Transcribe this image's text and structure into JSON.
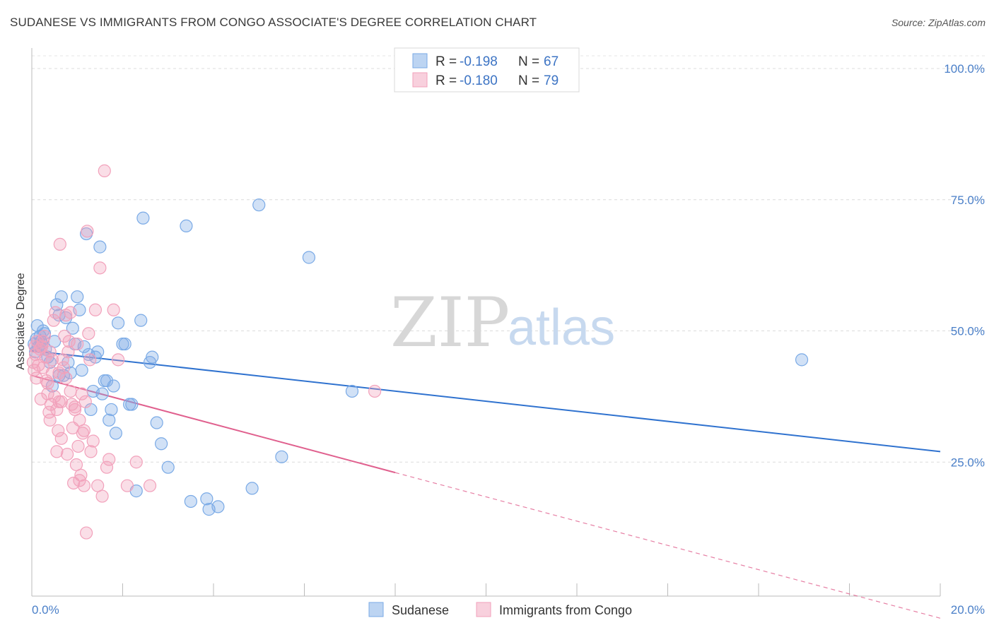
{
  "title": "SUDANESE VS IMMIGRANTS FROM CONGO ASSOCIATE'S DEGREE CORRELATION CHART",
  "source": "Source: ZipAtlas.com",
  "watermark": {
    "zip": "ZIP",
    "atlas": "atlas"
  },
  "chart_data": {
    "type": "scatter",
    "title": "SUDANESE VS IMMIGRANTS FROM CONGO ASSOCIATE'S DEGREE CORRELATION CHART",
    "xlabel": "",
    "ylabel": "Associate's Degree",
    "xlim": [
      0,
      20
    ],
    "ylim": [
      0,
      100
    ],
    "x_ticks": [
      "0.0%",
      "20.0%"
    ],
    "y_ticks": [
      {
        "value": 100,
        "label": "100.0%"
      },
      {
        "value": 75,
        "label": "75.0%"
      },
      {
        "value": 50,
        "label": "50.0%"
      },
      {
        "value": 25,
        "label": "25.0%"
      }
    ],
    "grid": true,
    "legend_position": "top-center",
    "series": [
      {
        "name": "Sudanese",
        "color": "#7aaae6",
        "line_color": "#2f72cf",
        "R": "-0.198",
        "N": "67",
        "trend": {
          "x0": 0,
          "y0": 46.2,
          "x1": 20,
          "y1": 27.0,
          "dashed_to": 20
        },
        "points": [
          [
            0.05,
            47.5
          ],
          [
            0.08,
            46.0
          ],
          [
            0.1,
            48.5
          ],
          [
            0.12,
            51.0
          ],
          [
            0.15,
            47.0
          ],
          [
            0.18,
            49.0
          ],
          [
            0.2,
            48.0
          ],
          [
            0.22,
            47.5
          ],
          [
            0.25,
            50.0
          ],
          [
            0.28,
            49.5
          ],
          [
            0.3,
            46.5
          ],
          [
            0.35,
            45.0
          ],
          [
            0.4,
            44.0
          ],
          [
            0.45,
            39.5
          ],
          [
            0.5,
            48.0
          ],
          [
            0.55,
            55.0
          ],
          [
            0.6,
            53.0
          ],
          [
            0.65,
            56.5
          ],
          [
            0.7,
            41.5
          ],
          [
            0.75,
            52.5
          ],
          [
            0.8,
            44.0
          ],
          [
            0.85,
            42.0
          ],
          [
            0.9,
            50.5
          ],
          [
            0.95,
            47.5
          ],
          [
            1.0,
            56.5
          ],
          [
            1.05,
            54.0
          ],
          [
            1.1,
            42.5
          ],
          [
            1.15,
            47.0
          ],
          [
            1.2,
            68.5
          ],
          [
            1.25,
            45.5
          ],
          [
            1.3,
            35.0
          ],
          [
            1.35,
            38.5
          ],
          [
            1.4,
            45.0
          ],
          [
            1.45,
            46.0
          ],
          [
            1.5,
            66.0
          ],
          [
            1.55,
            38.0
          ],
          [
            1.6,
            40.5
          ],
          [
            1.65,
            40.5
          ],
          [
            1.7,
            33.0
          ],
          [
            1.75,
            35.0
          ],
          [
            1.8,
            39.5
          ],
          [
            1.85,
            30.5
          ],
          [
            1.9,
            51.5
          ],
          [
            2.0,
            47.5
          ],
          [
            2.05,
            47.5
          ],
          [
            2.15,
            36.0
          ],
          [
            2.2,
            36.0
          ],
          [
            2.3,
            19.5
          ],
          [
            2.4,
            52.0
          ],
          [
            2.45,
            71.5
          ],
          [
            2.6,
            44.0
          ],
          [
            2.65,
            45.0
          ],
          [
            2.75,
            32.5
          ],
          [
            2.85,
            28.5
          ],
          [
            3.0,
            24.0
          ],
          [
            3.4,
            70.0
          ],
          [
            3.5,
            17.5
          ],
          [
            3.85,
            18.0
          ],
          [
            3.9,
            16.0
          ],
          [
            4.1,
            16.5
          ],
          [
            4.85,
            20.0
          ],
          [
            5.0,
            74.0
          ],
          [
            5.5,
            26.0
          ],
          [
            6.1,
            64.0
          ],
          [
            7.05,
            38.5
          ],
          [
            16.95,
            44.5
          ],
          [
            0.6,
            41.5
          ]
        ]
      },
      {
        "name": "Immigrants from Congo",
        "color": "#f2a1bb",
        "line_color": "#e0608e",
        "R": "-0.180",
        "N": "79",
        "trend": {
          "x0": 0,
          "y0": 41.5,
          "x1": 8.0,
          "y1": 23.0,
          "dashed_to": 20
        },
        "points": [
          [
            0.03,
            44.0
          ],
          [
            0.05,
            42.5
          ],
          [
            0.07,
            47.0
          ],
          [
            0.08,
            45.5
          ],
          [
            0.1,
            41.0
          ],
          [
            0.12,
            48.0
          ],
          [
            0.15,
            43.5
          ],
          [
            0.18,
            46.5
          ],
          [
            0.2,
            37.0
          ],
          [
            0.22,
            47.0
          ],
          [
            0.25,
            43.0
          ],
          [
            0.28,
            49.0
          ],
          [
            0.3,
            45.0
          ],
          [
            0.32,
            40.5
          ],
          [
            0.35,
            38.0
          ],
          [
            0.38,
            34.5
          ],
          [
            0.4,
            33.0
          ],
          [
            0.42,
            36.0
          ],
          [
            0.45,
            42.0
          ],
          [
            0.48,
            52.0
          ],
          [
            0.5,
            37.5
          ],
          [
            0.52,
            53.5
          ],
          [
            0.55,
            27.0
          ],
          [
            0.58,
            31.0
          ],
          [
            0.6,
            36.5
          ],
          [
            0.62,
            66.5
          ],
          [
            0.65,
            29.5
          ],
          [
            0.68,
            44.5
          ],
          [
            0.7,
            43.0
          ],
          [
            0.72,
            49.0
          ],
          [
            0.75,
            53.0
          ],
          [
            0.78,
            26.5
          ],
          [
            0.8,
            46.0
          ],
          [
            0.82,
            48.0
          ],
          [
            0.85,
            53.5
          ],
          [
            0.88,
            36.0
          ],
          [
            0.9,
            31.5
          ],
          [
            0.92,
            21.0
          ],
          [
            0.95,
            35.5
          ],
          [
            0.98,
            24.5
          ],
          [
            1.0,
            47.5
          ],
          [
            1.02,
            28.0
          ],
          [
            1.05,
            21.5
          ],
          [
            1.08,
            22.5
          ],
          [
            1.1,
            38.0
          ],
          [
            1.12,
            30.5
          ],
          [
            1.15,
            20.5
          ],
          [
            1.18,
            36.5
          ],
          [
            1.2,
            11.5
          ],
          [
            1.22,
            69.0
          ],
          [
            1.25,
            49.5
          ],
          [
            1.28,
            44.5
          ],
          [
            1.3,
            27.0
          ],
          [
            1.35,
            29.0
          ],
          [
            1.4,
            54.0
          ],
          [
            1.45,
            20.5
          ],
          [
            1.5,
            62.0
          ],
          [
            1.55,
            18.5
          ],
          [
            1.6,
            80.5
          ],
          [
            1.65,
            24.0
          ],
          [
            1.7,
            25.5
          ],
          [
            1.8,
            54.0
          ],
          [
            1.9,
            44.5
          ],
          [
            2.1,
            20.5
          ],
          [
            2.3,
            25.0
          ],
          [
            2.6,
            20.5
          ],
          [
            7.55,
            38.5
          ],
          [
            0.25,
            48.0
          ],
          [
            0.35,
            40.0
          ],
          [
            0.45,
            44.5
          ],
          [
            0.55,
            35.0
          ],
          [
            0.65,
            36.5
          ],
          [
            0.75,
            41.0
          ],
          [
            0.85,
            38.5
          ],
          [
            0.95,
            35.0
          ],
          [
            1.05,
            33.0
          ],
          [
            1.15,
            31.0
          ],
          [
            0.4,
            46.0
          ],
          [
            0.6,
            42.0
          ]
        ]
      }
    ]
  }
}
